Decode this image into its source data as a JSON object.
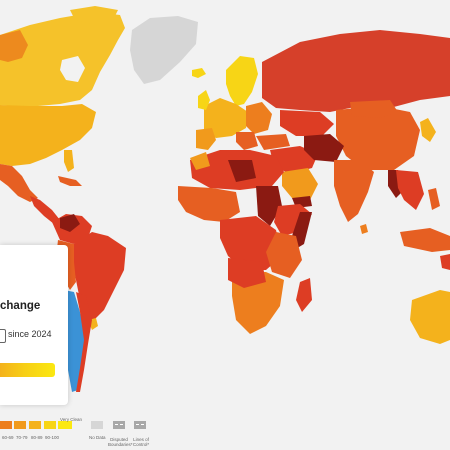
{
  "colors": {
    "ocean": "#f2f2f2",
    "very_clean": "#fbe811",
    "score_90_100": "#f7d516",
    "score_80_89": "#f4b21c",
    "score_70_79": "#f19a1c",
    "score_60_69": "#ed7e1e",
    "mid": "#e65f22",
    "low": "#dd3d24",
    "very_corrupt": "#8b1a12",
    "no_data": "#d6d6d6",
    "disputed": "#a8a8a8",
    "highlight": "#3b92d6"
  },
  "panel": {
    "title": "change",
    "since": "since 2024"
  },
  "legend": {
    "ranges": [
      "60-69",
      "70-79",
      "80-89",
      "90-100"
    ],
    "very_clean": "Very Clean",
    "no_data": "No Data",
    "disputed_boundaries": [
      "Disputed",
      "Boundaries*"
    ],
    "lines_of_control": [
      "Lines of",
      "Control*"
    ]
  }
}
